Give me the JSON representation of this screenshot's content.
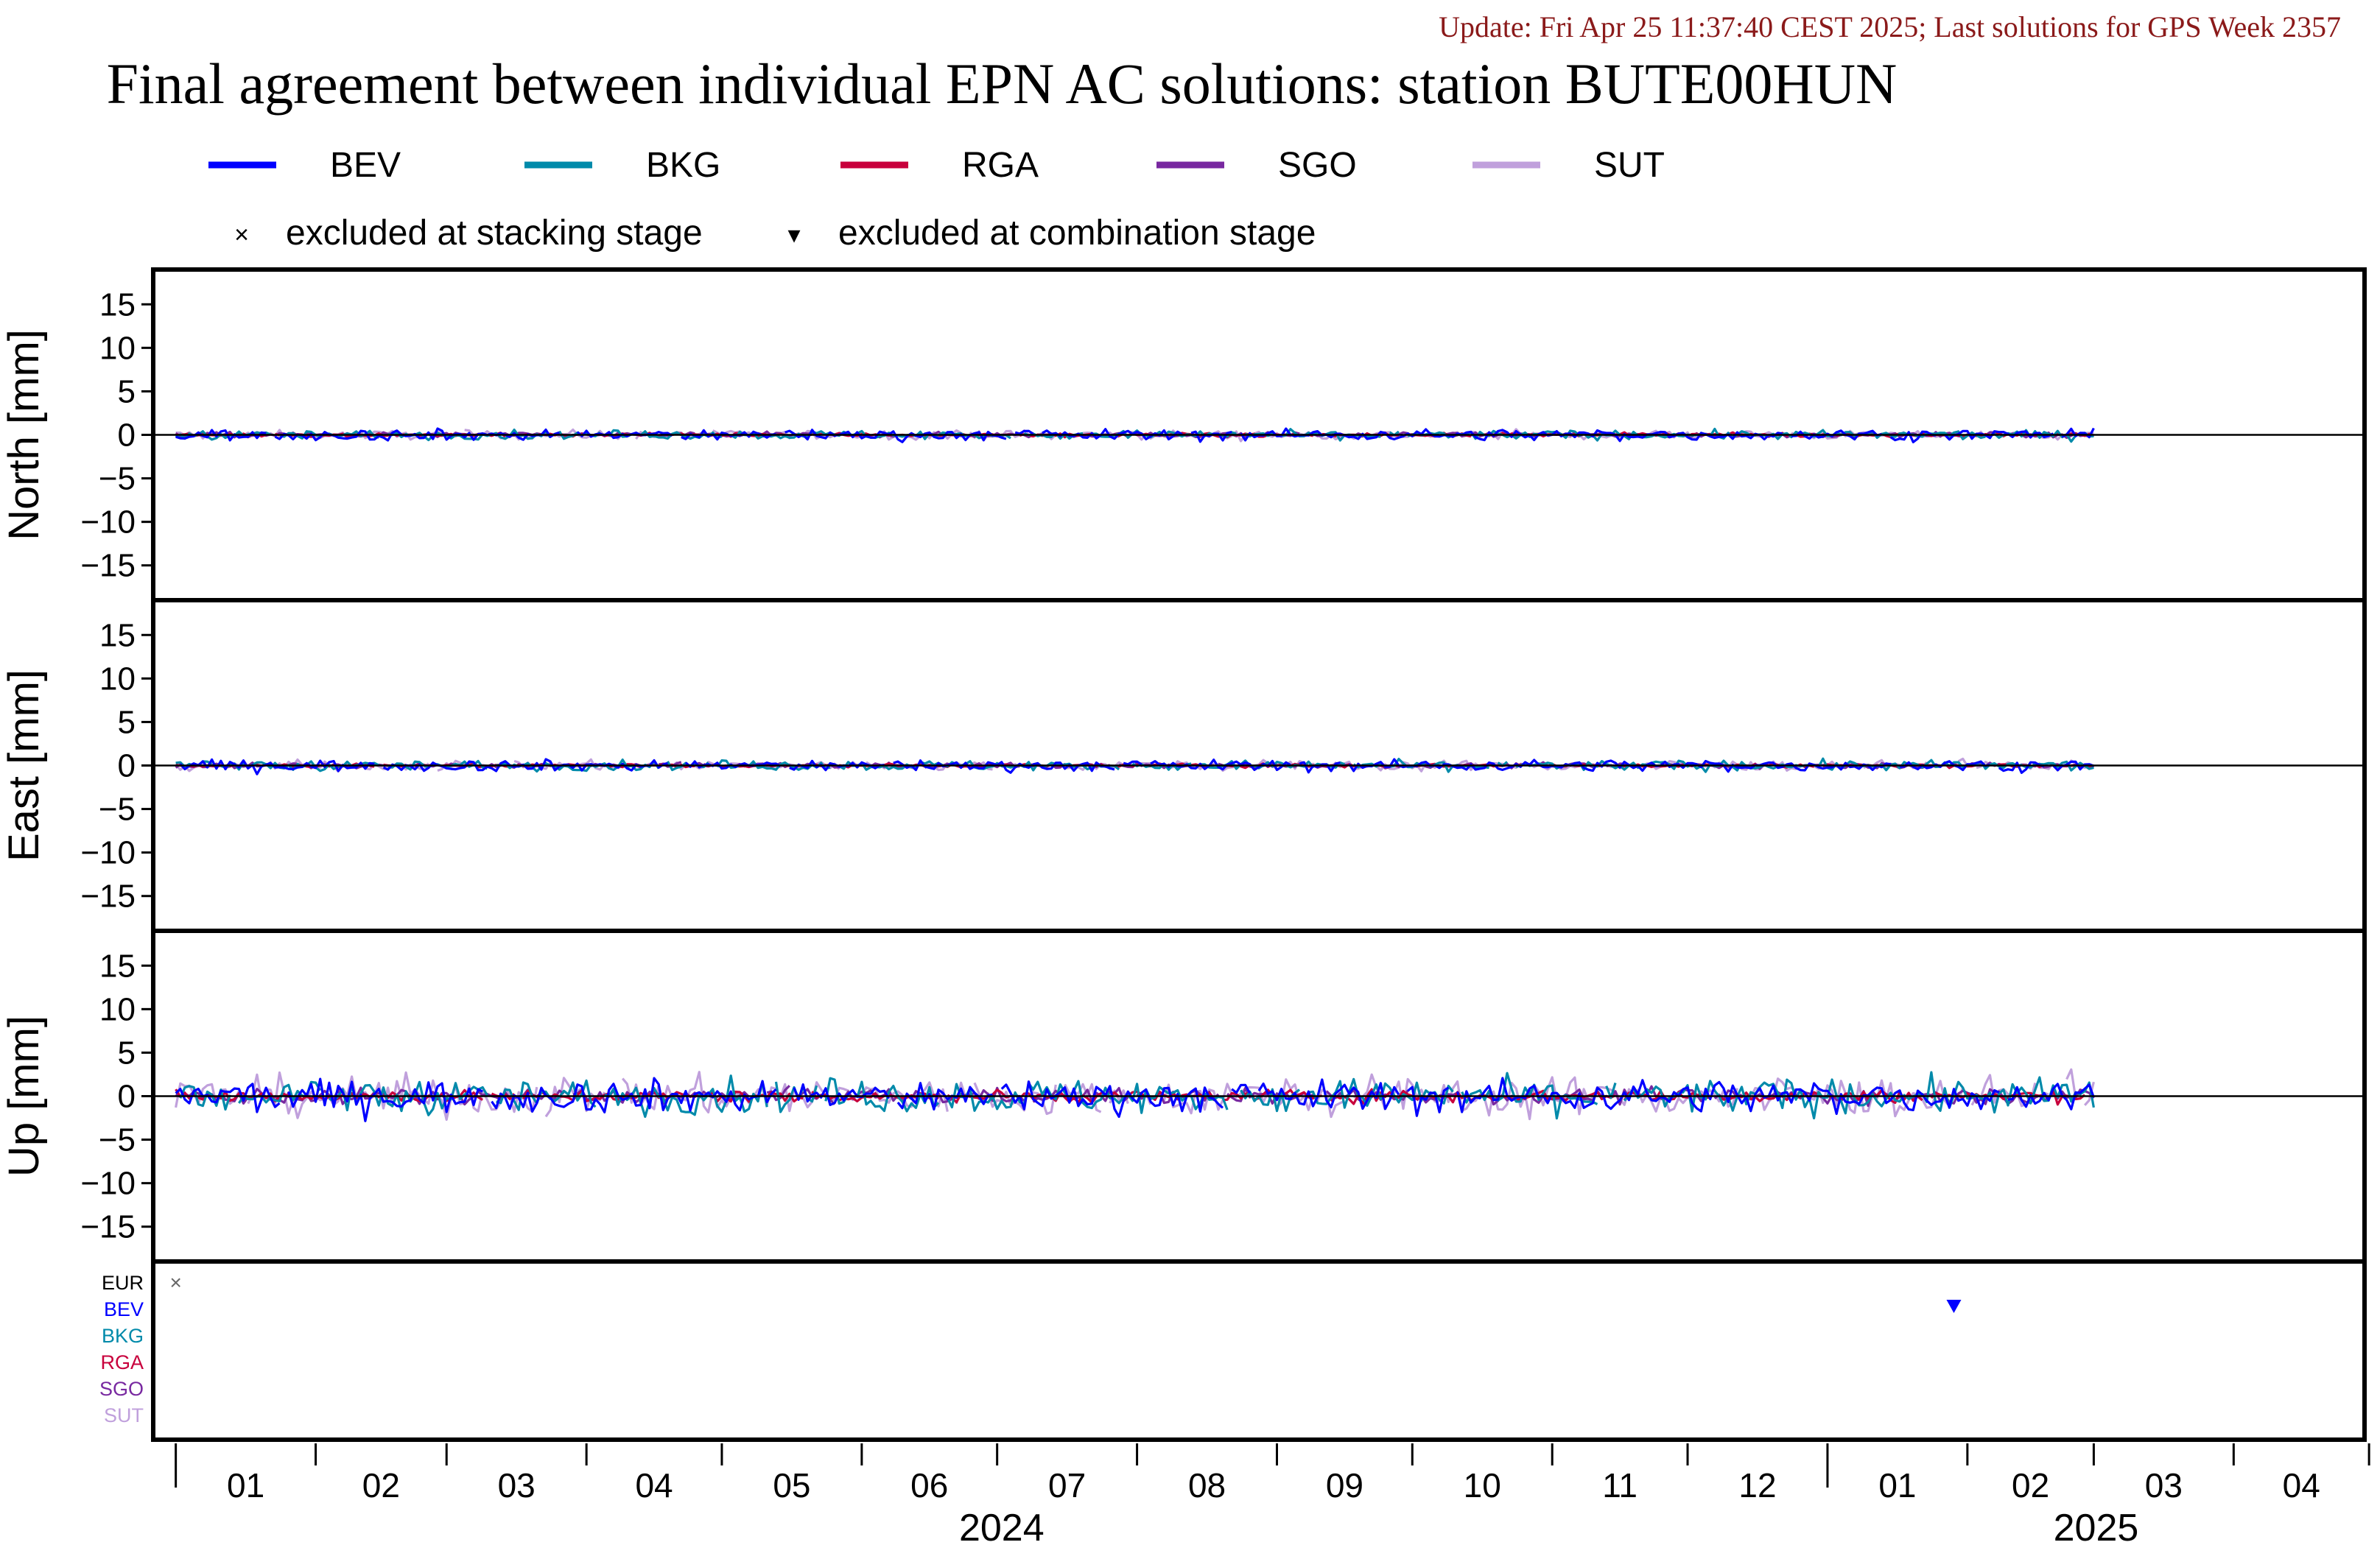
{
  "update_text": "Update: Fri Apr 25 11:37:40 CEST 2025; Last solutions for GPS Week 2357",
  "title": "Final agreement between individual EPN AC solutions: station BUTE00HUN",
  "legend": {
    "series": [
      {
        "name": "BEV",
        "color": "#0000ff"
      },
      {
        "name": "BKG",
        "color": "#008aaa"
      },
      {
        "name": "RGA",
        "color": "#c8003c"
      },
      {
        "name": "SGO",
        "color": "#7828a0"
      },
      {
        "name": "SUT",
        "color": "#c0a0dc"
      }
    ],
    "markers": [
      {
        "symbol": "×",
        "label": "excluded at stacking stage"
      },
      {
        "symbol": "▾",
        "label": "excluded at combination stage"
      }
    ]
  },
  "exclusion_panel": {
    "rows": [
      {
        "name": "EUR",
        "color": "#000000"
      },
      {
        "name": "BEV",
        "color": "#0000ff"
      },
      {
        "name": "BKG",
        "color": "#008aaa"
      },
      {
        "name": "RGA",
        "color": "#c8003c"
      },
      {
        "name": "SGO",
        "color": "#7828a0"
      },
      {
        "name": "SUT",
        "color": "#c0a0dc"
      }
    ],
    "events": [
      {
        "row": "EUR",
        "date": "2024-01-01",
        "marker": "stacking"
      },
      {
        "row": "BEV",
        "date": "2025-01-29",
        "marker": "combination"
      }
    ]
  },
  "chart_data": {
    "type": "line",
    "x_axis": {
      "type": "date",
      "range": [
        "2023-12-27",
        "2025-04-30"
      ],
      "month_labels": [
        "01",
        "02",
        "03",
        "04",
        "05",
        "06",
        "07",
        "08",
        "09",
        "10",
        "11",
        "12",
        "01",
        "02",
        "03",
        "04"
      ],
      "year_labels": [
        "2024",
        "2025"
      ]
    },
    "panels": [
      {
        "ylabel": "North [mm]",
        "ylim": [
          -19,
          19
        ],
        "yticks": [
          -15,
          -10,
          -5,
          0,
          5,
          10,
          15
        ],
        "amplitude": {
          "BEV": 0.45,
          "BKG": 0.35,
          "RGA": 0.15,
          "SGO": 0.2,
          "SUT": 0.35
        }
      },
      {
        "ylabel": "East [mm]",
        "ylim": [
          -19,
          19
        ],
        "yticks": [
          -15,
          -10,
          -5,
          0,
          5,
          10,
          15
        ],
        "amplitude": {
          "BEV": 0.45,
          "BKG": 0.4,
          "RGA": 0.15,
          "SGO": 0.2,
          "SUT": 0.4
        }
      },
      {
        "ylabel": "Up [mm]",
        "ylim": [
          -19,
          19
        ],
        "yticks": [
          -15,
          -10,
          -5,
          0,
          5,
          10,
          15
        ],
        "amplitude": {
          "BEV": 1.3,
          "BKG": 1.4,
          "RGA": 0.5,
          "SGO": 0.6,
          "SUT": 1.6
        }
      }
    ],
    "series_span": [
      "2024-01-01",
      "2025-03-01"
    ],
    "note": "Daily residuals (mm) of each AC vs. combined solution; values fluctuate around 0 within the listed approximate amplitudes."
  }
}
